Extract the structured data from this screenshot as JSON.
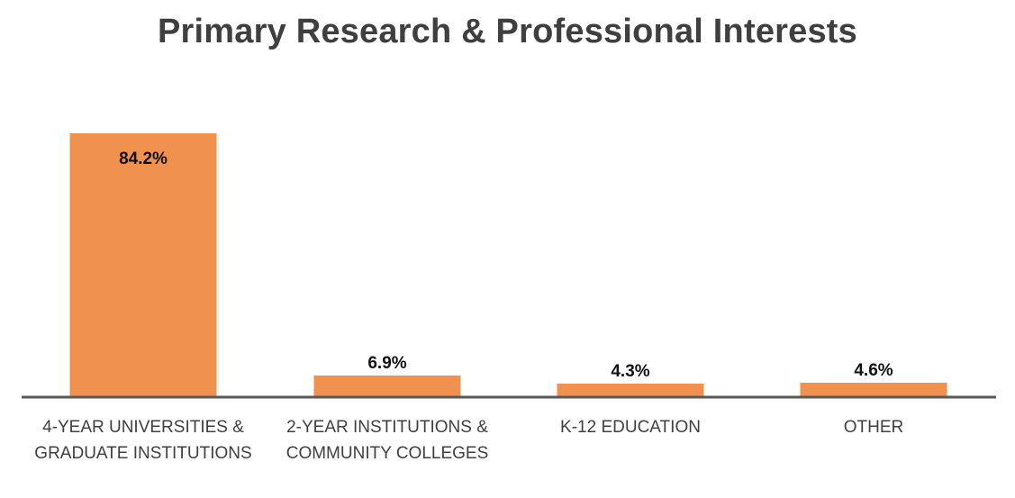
{
  "chart_data": {
    "type": "bar",
    "title": "Primary Research & Professional Interests",
    "categories": [
      [
        "4-YEAR UNIVERSITIES &",
        "GRADUATE INSTITUTIONS"
      ],
      [
        "2-YEAR INSTITUTIONS &",
        "COMMUNITY COLLEGES"
      ],
      [
        "K-12 EDUCATION"
      ],
      [
        "OTHER"
      ]
    ],
    "values": [
      84.2,
      6.9,
      4.3,
      4.6
    ],
    "data_labels": [
      "84.2%",
      "6.9%",
      "4.3%",
      "4.6%"
    ],
    "ylim": [
      0,
      100
    ],
    "grid": false,
    "legend": "none",
    "bar_color": "#f0914f",
    "axis_color": "#595959"
  }
}
